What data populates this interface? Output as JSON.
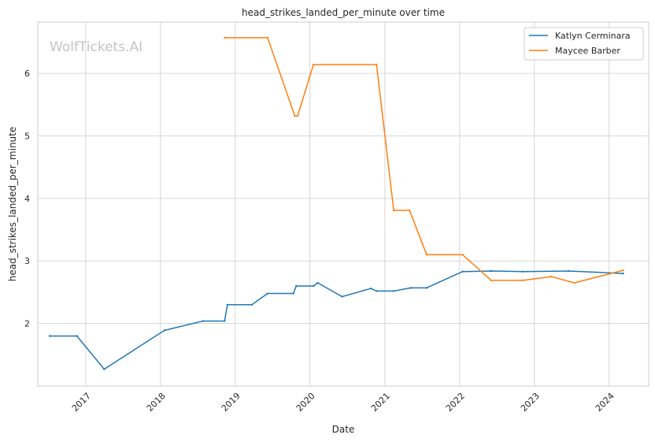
{
  "chart_data": {
    "type": "line",
    "title": "head_strikes_landed_per_minute over time",
    "xlabel": "Date",
    "ylabel": "head_strikes_landed_per_minute",
    "watermark": "WolfTickets.AI",
    "x_tick_labels": [
      "2017",
      "2018",
      "2019",
      "2020",
      "2021",
      "2022",
      "2023",
      "2024"
    ],
    "y_tick_labels": [
      "2",
      "3",
      "4",
      "5",
      "6"
    ],
    "xlim": [
      "2016-05-12",
      "2024-07-12"
    ],
    "ylim": [
      1.0,
      6.82
    ],
    "grid": true,
    "legend_position": "top-right",
    "series": [
      {
        "name": "Katlyn Cerminara",
        "color": "#1f77b4",
        "points": [
          [
            "2016-07-09",
            1.8
          ],
          [
            "2016-11-19",
            1.8
          ],
          [
            "2017-04-01",
            1.27
          ],
          [
            "2018-01-20",
            1.89
          ],
          [
            "2018-07-28",
            2.04
          ],
          [
            "2018-11-10",
            2.04
          ],
          [
            "2018-11-24",
            2.3
          ],
          [
            "2019-03-23",
            2.3
          ],
          [
            "2019-06-08",
            2.48
          ],
          [
            "2019-10-12",
            2.48
          ],
          [
            "2019-10-26",
            2.6
          ],
          [
            "2020-01-18",
            2.6
          ],
          [
            "2020-02-08",
            2.65
          ],
          [
            "2020-06-06",
            2.43
          ],
          [
            "2020-10-24",
            2.56
          ],
          [
            "2020-11-21",
            2.52
          ],
          [
            "2021-02-13",
            2.52
          ],
          [
            "2021-05-08",
            2.57
          ],
          [
            "2021-07-24",
            2.57
          ],
          [
            "2022-01-15",
            2.83
          ],
          [
            "2022-06-04",
            2.84
          ],
          [
            "2022-11-05",
            2.83
          ],
          [
            "2023-06-17",
            2.84
          ],
          [
            "2024-03-09",
            2.8
          ]
        ]
      },
      {
        "name": "Maycee Barber",
        "color": "#ff7f0e",
        "points": [
          [
            "2018-11-10",
            6.57
          ],
          [
            "2019-06-08",
            6.57
          ],
          [
            "2019-10-19",
            5.32
          ],
          [
            "2019-11-02",
            5.32
          ],
          [
            "2020-01-18",
            6.14
          ],
          [
            "2020-11-21",
            6.14
          ],
          [
            "2021-02-13",
            3.81
          ],
          [
            "2021-05-01",
            3.81
          ],
          [
            "2021-07-24",
            3.1
          ],
          [
            "2022-01-15",
            3.1
          ],
          [
            "2022-06-04",
            2.69
          ],
          [
            "2022-11-05",
            2.69
          ],
          [
            "2023-03-25",
            2.75
          ],
          [
            "2023-07-15",
            2.65
          ],
          [
            "2024-03-09",
            2.85
          ]
        ]
      }
    ]
  }
}
